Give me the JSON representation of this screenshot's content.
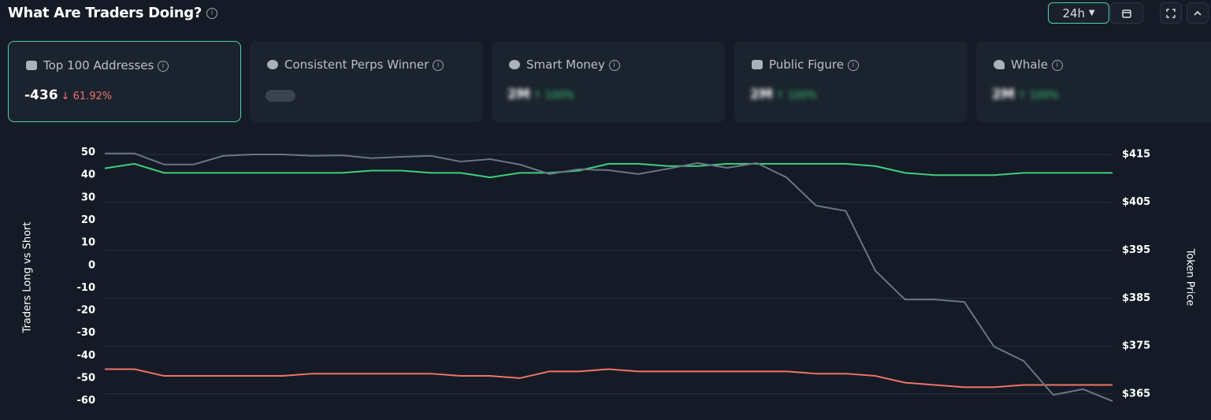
{
  "header": {
    "title": "What Are Traders Doing?",
    "timeframe": "24h"
  },
  "cards": [
    {
      "label": "Top 100 Addresses",
      "value": -436,
      "change": "61.92%"
    },
    {
      "label": "Consistent Perps Winner"
    },
    {
      "label": "Smart Money",
      "value": "2M",
      "change": "100%"
    },
    {
      "label": "Public Figure",
      "value": "2M",
      "change": "100%"
    },
    {
      "label": "Whale",
      "value": "2M",
      "change": "100%"
    }
  ],
  "chart_data": {
    "type": "line",
    "ylabel": "Traders Long vs Short",
    "y2label": "Token Price",
    "ylim": [
      -64,
      53
    ],
    "yticks": [
      50,
      40,
      30,
      20,
      10,
      0,
      -10,
      -20,
      -30,
      -40,
      -50,
      -60
    ],
    "y2lim": [
      361.7,
      416.8
    ],
    "y2ticks": [
      {
        "value": 415,
        "label": "$415"
      },
      {
        "value": 405,
        "label": "$405"
      },
      {
        "value": 395,
        "label": "$395"
      },
      {
        "value": 385,
        "label": "$385"
      },
      {
        "value": 375,
        "label": "$375"
      },
      {
        "value": 365,
        "label": "$365"
      }
    ],
    "grid": true,
    "series": [
      {
        "color": "#3ecf7e",
        "values": [
          43,
          45,
          41,
          41,
          41,
          41,
          41,
          41,
          41,
          42,
          42,
          41,
          41,
          39,
          41,
          41,
          42,
          45,
          45,
          44,
          44,
          45,
          45,
          45,
          45,
          45,
          44,
          41,
          40,
          40,
          40,
          41,
          41,
          41,
          41
        ]
      },
      {
        "color": "#f0736b",
        "values": [
          -46,
          -46,
          -49,
          -49,
          -49,
          -49,
          -49,
          -48,
          -48,
          -48,
          -48,
          -48,
          -49,
          -49,
          -50,
          -47,
          -47,
          -46,
          -47,
          -47,
          -47,
          -47,
          -47,
          -47,
          -48,
          -48,
          -49,
          -52,
          -53,
          -54,
          -54,
          -53,
          -53,
          -53,
          -53
        ]
      },
      {
        "color": "#6b7685",
        "axis": "y2",
        "values": [
          415.2,
          415.2,
          412.9,
          412.9,
          414.7,
          415,
          415,
          414.7,
          414.8,
          414.2,
          414.5,
          414.7,
          413.5,
          414,
          412.9,
          410.9,
          411.9,
          411.7,
          410.9,
          412,
          413.2,
          412.2,
          413.2,
          410.2,
          404.3,
          403.2,
          390.7,
          384.7,
          384.7,
          384.2,
          374.9,
          371.9,
          364.8,
          366,
          363.5
        ]
      }
    ]
  }
}
